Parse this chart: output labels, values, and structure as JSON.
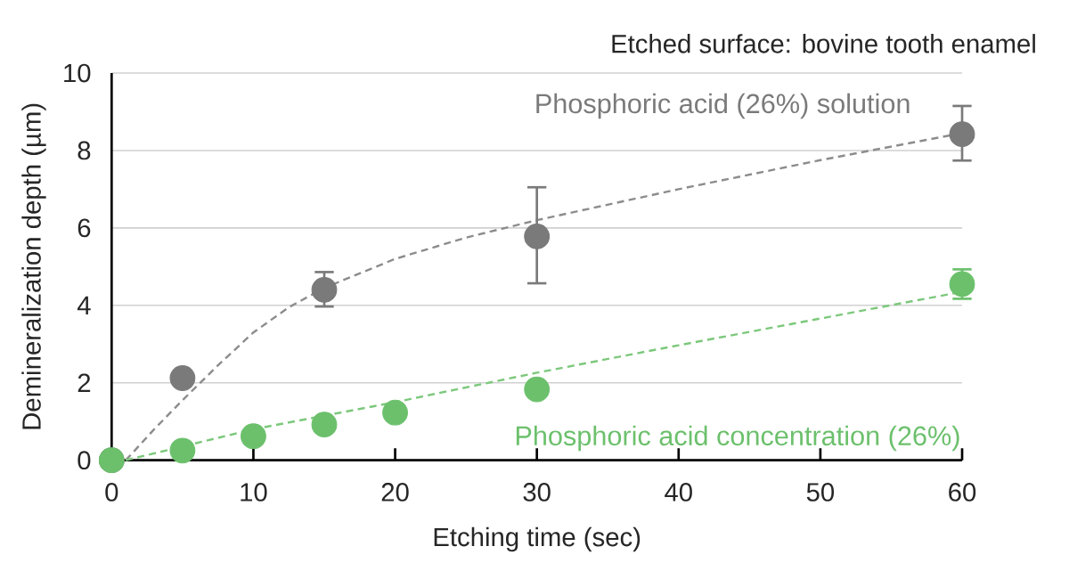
{
  "chart_data": {
    "type": "scatter",
    "xlabel": "Etching time (sec)",
    "ylabel": "Demineralization depth (µm)",
    "annotations": [
      "Etched surface: bovine tooth enamel"
    ],
    "xlim": [
      0,
      60
    ],
    "ylim": [
      0,
      10
    ],
    "xticks": [
      0,
      10,
      20,
      30,
      40,
      50,
      60
    ],
    "yticks": [
      0,
      2,
      4,
      6,
      8,
      10
    ],
    "grid": "y",
    "marker": "circle",
    "series": [
      {
        "name": "Phosphoric acid (26%) solution",
        "color": "#7a7a7a",
        "x": [
          0,
          5,
          15,
          30,
          60
        ],
        "values": [
          0,
          2.12,
          4.4,
          5.78,
          8.42
        ],
        "errors": [
          null,
          null,
          [
            3.97,
            4.86
          ],
          [
            4.57,
            7.05
          ],
          [
            7.74,
            9.15
          ]
        ]
      },
      {
        "name": "Phosphoric acid concentration (26%)",
        "color": "#6cc06c",
        "x": [
          0,
          5,
          10,
          15,
          20,
          30,
          60
        ],
        "values": [
          0,
          0.25,
          0.62,
          0.92,
          1.23,
          1.83,
          4.55
        ],
        "errors": [
          null,
          null,
          null,
          null,
          null,
          null,
          [
            4.17,
            4.93
          ]
        ]
      },
      {
        "type": "line",
        "line_style": "dashed",
        "marker": "none",
        "color": "#8c8c8c",
        "x": [
          1,
          3,
          5,
          7.5,
          10,
          12.5,
          15,
          20,
          25,
          30,
          40,
          50,
          60
        ],
        "values": [
          0,
          0.8,
          1.55,
          2.45,
          3.3,
          3.95,
          4.45,
          5.2,
          5.75,
          6.2,
          7.0,
          7.75,
          8.45
        ]
      },
      {
        "type": "line",
        "line_style": "dashed",
        "marker": "none",
        "color": "#7cc87c",
        "x": [
          1,
          10,
          20,
          30,
          40,
          50,
          60
        ],
        "values": [
          0,
          0.8,
          1.5,
          2.26,
          2.97,
          3.66,
          4.35
        ]
      }
    ]
  }
}
